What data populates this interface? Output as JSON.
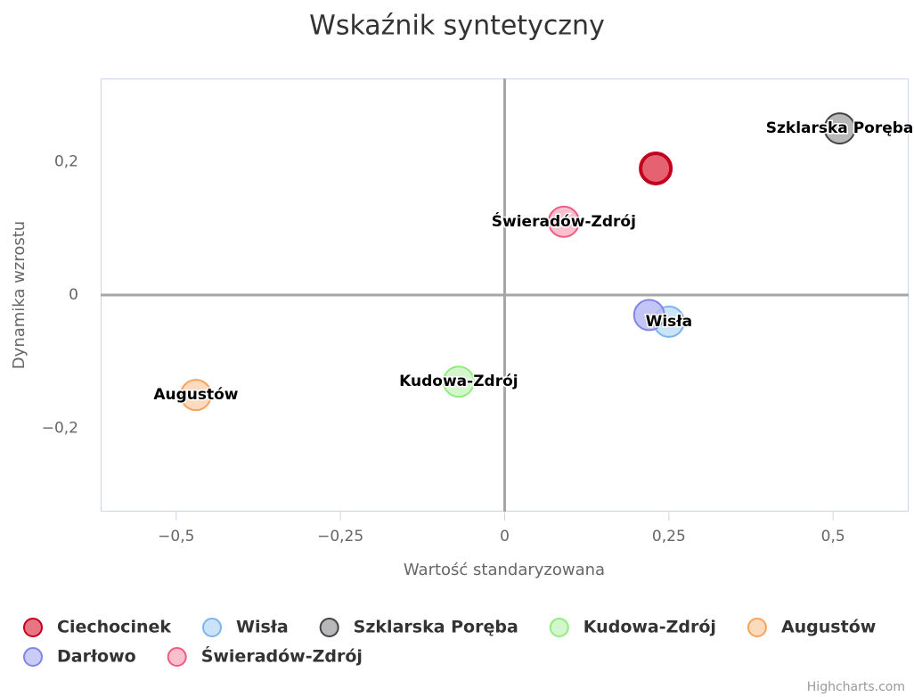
{
  "chart_data": {
    "type": "bubble",
    "title": "Wskaźnik syntetyczny",
    "x_label": "Wartość standaryzowana",
    "y_label": "Dynamika wzrostu",
    "xlim": [
      -0.615,
      0.615
    ],
    "ylim": [
      -0.325,
      0.325
    ],
    "xticks": [
      {
        "value": -0.5,
        "label": "−0,5"
      },
      {
        "value": -0.25,
        "label": "−0,25"
      },
      0,
      {
        "value": 0.25,
        "label": "0,25"
      },
      {
        "value": 0.5,
        "label": "0,5"
      }
    ],
    "yticks": [
      {
        "value": -0.2,
        "label": "−0,2"
      },
      0,
      {
        "value": 0.2,
        "label": "0,2"
      }
    ],
    "plot_lines": {
      "x": 0,
      "y": 0
    },
    "grid": false,
    "legend": "bottom",
    "series": [
      {
        "name": "Ciechocinek",
        "color": "#e0475a",
        "border": "#c4001c",
        "x": [
          0.23
        ],
        "values": [
          0.19
        ],
        "data_label": false
      },
      {
        "name": "Wisła",
        "color": "#b9d9f7",
        "border": "#7cb5ec",
        "x": [
          0.25
        ],
        "values": [
          -0.04
        ],
        "data_label": true
      },
      {
        "name": "Szklarska Poręba",
        "color": "#a0a0a0",
        "border": "#434348",
        "x": [
          0.51
        ],
        "values": [
          0.25
        ],
        "data_label": true
      },
      {
        "name": "Kudowa-Zdrój",
        "color": "#c4f3bc",
        "border": "#90ed7d",
        "x": [
          -0.07
        ],
        "values": [
          -0.13
        ],
        "data_label": true
      },
      {
        "name": "Augustów",
        "color": "#f9cda7",
        "border": "#f7a35c",
        "x": [
          -0.47
        ],
        "values": [
          -0.15
        ],
        "data_label": true
      },
      {
        "name": "Darłowo",
        "color": "#b9bbf2",
        "border": "#8085e9",
        "x": [
          0.22
        ],
        "values": [
          -0.03
        ],
        "data_label": false
      },
      {
        "name": "Świeradów-Zdrój",
        "color": "#f6aabd",
        "border": "#f15c80",
        "x": [
          0.09
        ],
        "values": [
          0.11
        ],
        "data_label": true
      }
    ],
    "credits": "Highcharts.com"
  }
}
